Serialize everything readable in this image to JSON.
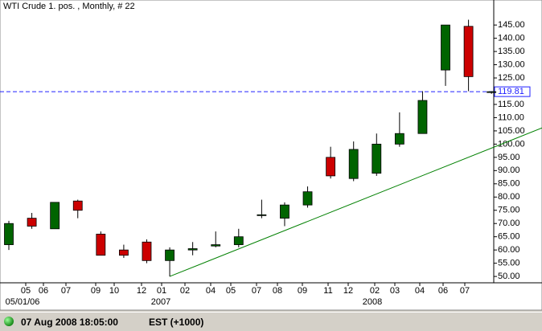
{
  "chart_data": {
    "type": "candlestick",
    "title": "WTI Crude 1. pos. , Monthly, # 22",
    "open": [
      62,
      72,
      68,
      78.5,
      66,
      60,
      63,
      56,
      60,
      61.5,
      62,
      73,
      72,
      77,
      95,
      87,
      89,
      100,
      104,
      128,
      144.5,
      119.5
    ],
    "high": [
      71,
      74,
      78,
      79,
      67,
      62,
      64,
      61,
      63,
      67,
      68,
      79,
      78,
      84,
      99,
      101,
      104,
      112,
      120,
      145,
      147,
      120
    ],
    "low": [
      60,
      68,
      68,
      72,
      58,
      57,
      55,
      50,
      58,
      61,
      61,
      72,
      69,
      76,
      87,
      86,
      88,
      99,
      104,
      122,
      120,
      119
    ],
    "close": [
      70,
      69,
      78,
      75,
      58,
      58,
      56,
      60,
      60.5,
      62,
      65,
      73.3,
      77,
      82,
      88,
      98,
      100,
      104,
      116.5,
      145,
      125.5,
      119.81
    ],
    "up_color": "#006400",
    "down_color": "#cc0000",
    "x_labels": [
      "05",
      "06",
      "07",
      "09",
      "10",
      "12",
      "01",
      "02",
      "04",
      "05",
      "07",
      "08",
      "09",
      "11",
      "12",
      "02",
      "03",
      "04",
      "06",
      "07"
    ],
    "x_labels_2": [
      "05/01/06",
      "2007",
      "2008"
    ],
    "ylim": [
      47.6,
      149.9
    ],
    "yticks": [
      {
        "value": 50,
        "label": "50.00"
      },
      {
        "value": 55,
        "label": "55.00"
      },
      {
        "value": 60,
        "label": "60.00"
      },
      {
        "value": 65,
        "label": "65.00"
      },
      {
        "value": 70,
        "label": "70.00"
      },
      {
        "value": 75,
        "label": "75.00"
      },
      {
        "value": 80,
        "label": "80.00"
      },
      {
        "value": 85,
        "label": "85.00"
      },
      {
        "value": 90,
        "label": "90.00"
      },
      {
        "value": 95,
        "label": "95.00"
      },
      {
        "value": 100,
        "label": "100.00"
      },
      {
        "value": 105,
        "label": "105.00"
      },
      {
        "value": 110,
        "label": "110.00"
      },
      {
        "value": 115,
        "label": "115.00"
      },
      {
        "value": 120,
        "label": "120.00"
      },
      {
        "value": 125,
        "label": "125.00"
      },
      {
        "value": 130,
        "label": "130.00"
      },
      {
        "value": 135,
        "label": "135.00"
      },
      {
        "value": 140,
        "label": "140.00"
      },
      {
        "value": 145,
        "label": "145.00"
      }
    ],
    "last_price": 119.81,
    "last_price_color": "#2020ff",
    "trendline": {
      "from_index": 7,
      "from_value": 50,
      "to_index": 21,
      "to_value": 98.5,
      "color": "#008000"
    }
  },
  "status": {
    "time": "07 Aug 2008 18:05:00",
    "zone": "EST (+1000)"
  }
}
